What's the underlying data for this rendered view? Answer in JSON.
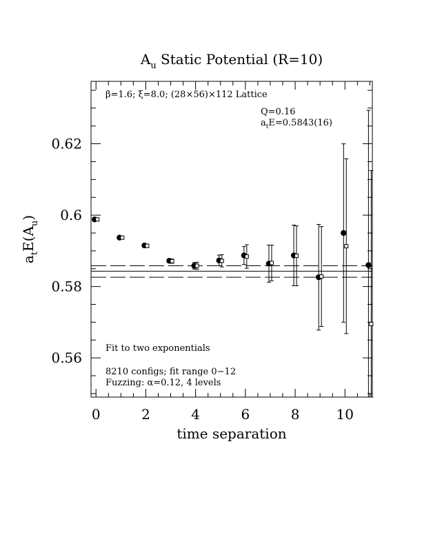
{
  "chart_data": {
    "type": "scatter",
    "title_main": "A",
    "title_sub": "u",
    "title_rest": " Static Potential (R=10)",
    "xlabel": "time separation",
    "ylabel": {
      "a": "a",
      "t": "t",
      "mid": "E(A",
      "u": "u",
      "close": ")"
    },
    "xlim": [
      -0.2,
      11.1
    ],
    "ylim": [
      0.549,
      0.6375
    ],
    "xticks": [
      0,
      2,
      4,
      6,
      8,
      10
    ],
    "yticks": [
      0.56,
      0.58,
      0.6,
      0.62
    ],
    "ytick_labels": [
      "0.56",
      "0.58",
      "0.6",
      "0.62"
    ],
    "lattice_label": "β=1.6; ξ=8.0; (28×56)×112 Lattice",
    "q_label": "Q=0.16",
    "fit_value": {
      "a": "a",
      "t": "t",
      "rest": "E=0.5843(16)"
    },
    "notes": [
      "Fit to two exponentials",
      "8210 configs; fit range 0−12",
      "Fuzzing: α=0.12, 4 levels"
    ],
    "fit": {
      "center": 0.5843,
      "upper": 0.5858,
      "lower": 0.5826
    },
    "series": [
      {
        "marker": "filled-circle",
        "points": [
          {
            "x": 0,
            "y": 0.5988,
            "err": 0.0003
          },
          {
            "x": 1,
            "y": 0.5937,
            "err": 0.0004
          },
          {
            "x": 2,
            "y": 0.5915,
            "err": 0.0005
          },
          {
            "x": 3,
            "y": 0.5872,
            "err": 0.0006
          },
          {
            "x": 4,
            "y": 0.5858,
            "err": 0.0009
          },
          {
            "x": 5,
            "y": 0.5873,
            "err": 0.0015
          },
          {
            "x": 6,
            "y": 0.5887,
            "err": 0.0025
          },
          {
            "x": 7,
            "y": 0.5864,
            "err": 0.0052
          },
          {
            "x": 8,
            "y": 0.5887,
            "err": 0.0085
          },
          {
            "x": 9,
            "y": 0.5826,
            "err": 0.0148
          },
          {
            "x": 10,
            "y": 0.595,
            "err": 0.025
          },
          {
            "x": 11,
            "y": 0.586,
            "err": 0.044
          }
        ]
      },
      {
        "marker": "open-square",
        "points": [
          {
            "x": 0,
            "y": 0.5988,
            "err": 0.0003
          },
          {
            "x": 1,
            "y": 0.5937,
            "err": 0.0004
          },
          {
            "x": 2,
            "y": 0.5914,
            "err": 0.0005
          },
          {
            "x": 3,
            "y": 0.5871,
            "err": 0.0006
          },
          {
            "x": 4,
            "y": 0.5858,
            "err": 0.001
          },
          {
            "x": 5,
            "y": 0.5872,
            "err": 0.0017
          },
          {
            "x": 6,
            "y": 0.5884,
            "err": 0.0033
          },
          {
            "x": 7,
            "y": 0.5866,
            "err": 0.005
          },
          {
            "x": 8,
            "y": 0.5886,
            "err": 0.0084
          },
          {
            "x": 9,
            "y": 0.5828,
            "err": 0.014
          },
          {
            "x": 10,
            "y": 0.5913,
            "err": 0.0245
          },
          {
            "x": 11,
            "y": 0.5695,
            "err": 0.043
          }
        ]
      }
    ]
  }
}
